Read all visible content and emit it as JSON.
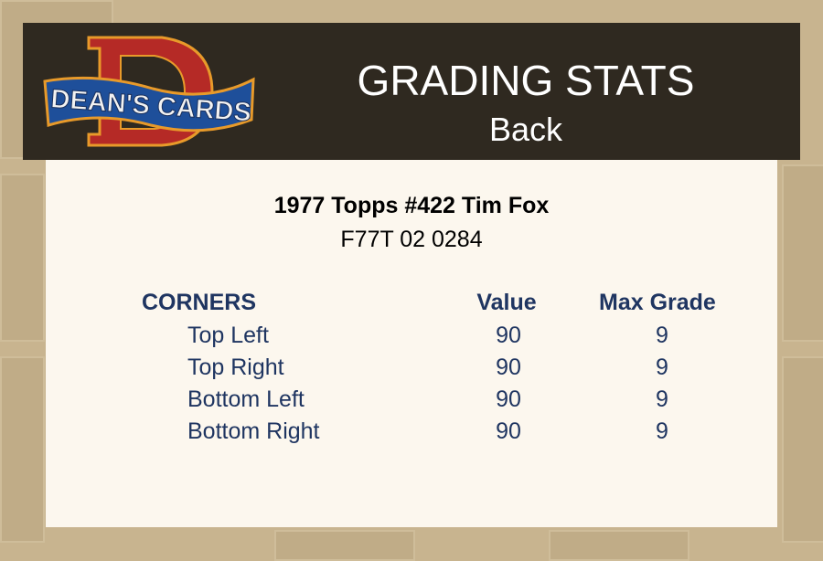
{
  "logo": {
    "text": "DEAN'S CARDS",
    "letter": "D"
  },
  "header": {
    "title": "GRADING STATS",
    "subtitle": "Back"
  },
  "card": {
    "name": "1977 Topps #422 Tim Fox",
    "cert": "F77T 02 0284"
  },
  "table": {
    "headers": [
      "CORNERS",
      "Value",
      "Max Grade"
    ],
    "rows": [
      {
        "label": "Top Left",
        "value": "90",
        "max": "9"
      },
      {
        "label": "Top Right",
        "value": "90",
        "max": "9"
      },
      {
        "label": "Bottom Left",
        "value": "90",
        "max": "9"
      },
      {
        "label": "Bottom Right",
        "value": "90",
        "max": "9"
      }
    ]
  },
  "colors": {
    "header_bg": "#2f2920",
    "panel_bg": "#fcf7ee",
    "text_navy": "#1f3561",
    "background": "#c8b48f"
  }
}
